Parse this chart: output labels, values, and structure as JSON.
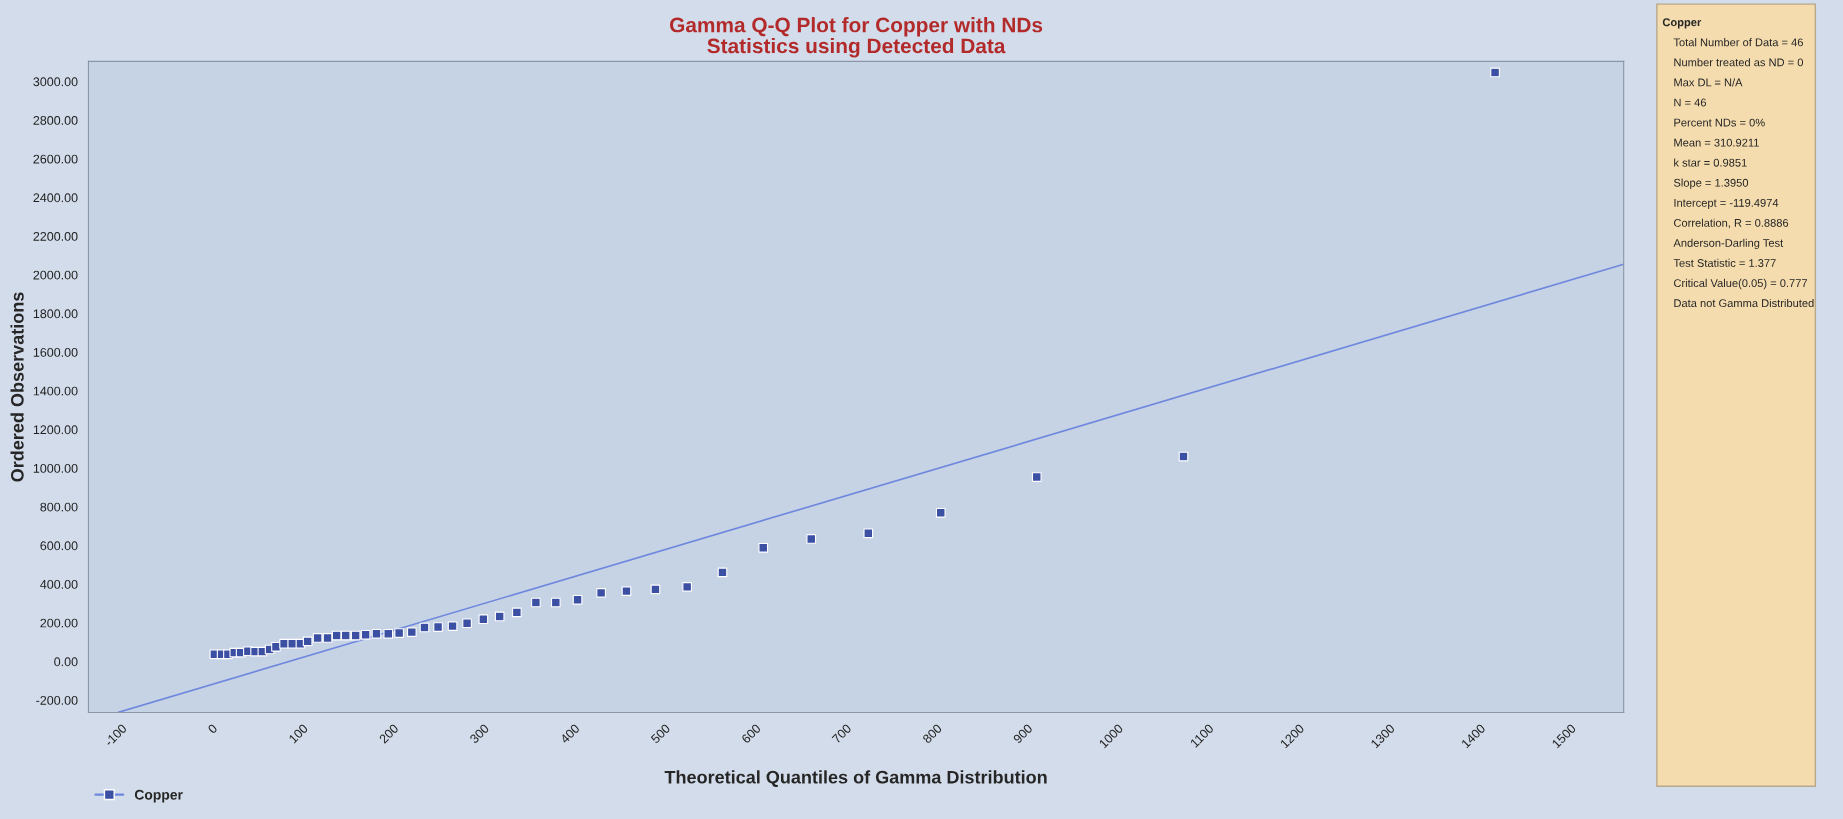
{
  "chart_data": {
    "type": "scatter",
    "title": "Gamma Q-Q Plot for Copper with NDs\nStatistics using Detected Data",
    "xlabel": "Theoretical Quantiles of Gamma Distribution",
    "ylabel": "Ordered Observations",
    "series": [
      {
        "name": "Copper",
        "color": "#3b4fa3",
        "marker": "square",
        "x": [
          3,
          11,
          18,
          25,
          32,
          40,
          48,
          56,
          64,
          71,
          80,
          89,
          98,
          106,
          117,
          128,
          138,
          148,
          159,
          170,
          182,
          195,
          207,
          221,
          235,
          250,
          266,
          282,
          300,
          318,
          337,
          358,
          380,
          404,
          430,
          458,
          490,
          525,
          564,
          609,
          662,
          725,
          805,
          911,
          1073,
          1417
        ],
        "values": [
          37,
          37,
          37,
          46,
          46,
          53,
          51,
          51,
          62,
          76,
          92,
          92,
          92,
          104,
          122,
          122,
          134,
          134,
          134,
          138,
          143,
          143,
          147,
          152,
          176,
          178,
          183,
          198,
          219,
          233,
          254,
          305,
          305,
          319,
          355,
          364,
          373,
          386,
          461,
          588,
          634,
          663,
          769,
          954,
          1060,
          3047
        ]
      },
      {
        "type": "line",
        "color": "#6f88de",
        "line_style": "solid",
        "x": [
          -103,
          1559
        ],
        "values": [
          -263,
          2055
        ]
      }
    ],
    "xlim": [
      -136,
      1559
    ],
    "ylim": [
      -264,
      3104
    ],
    "xticks": [
      -100,
      0,
      100,
      200,
      300,
      400,
      500,
      600,
      700,
      800,
      900,
      1000,
      1100,
      1200,
      1300,
      1400,
      1500
    ],
    "yticks": [
      {
        "value": -200,
        "label": "-200.00"
      },
      {
        "value": 0,
        "label": "0.00"
      },
      {
        "value": 200,
        "label": "200.00"
      },
      {
        "value": 400,
        "label": "400.00"
      },
      {
        "value": 600,
        "label": "600.00"
      },
      {
        "value": 800,
        "label": "800.00"
      },
      {
        "value": 1000,
        "label": "1000.00"
      },
      {
        "value": 1200,
        "label": "1200.00"
      },
      {
        "value": 1400,
        "label": "1400.00"
      },
      {
        "value": 1600,
        "label": "1600.00"
      },
      {
        "value": 1800,
        "label": "1800.00"
      },
      {
        "value": 2000,
        "label": "2000.00"
      },
      {
        "value": 2200,
        "label": "2200.00"
      },
      {
        "value": 2400,
        "label": "2400.00"
      },
      {
        "value": 2600,
        "label": "2600.00"
      },
      {
        "value": 2800,
        "label": "2800.00"
      },
      {
        "value": 3000,
        "label": "3000.00"
      }
    ],
    "grid": false,
    "legend": "bottom left",
    "annotations": [
      "Copper",
      "Total Number of Data = 46",
      "Number treated as ND = 0",
      "Max DL = N/A",
      "N = 46",
      "Percent NDs = 0%",
      "Mean = 310.9211",
      "k star = 0.9851",
      "Slope = 1.3950",
      "Intercept = -119.4974",
      "Correlation, R = 0.8886",
      "Anderson-Darling Test",
      "Test Statistic = 1.377",
      "Critical Value(0.05) = 0.777",
      "Data not Gamma Distributed"
    ]
  }
}
